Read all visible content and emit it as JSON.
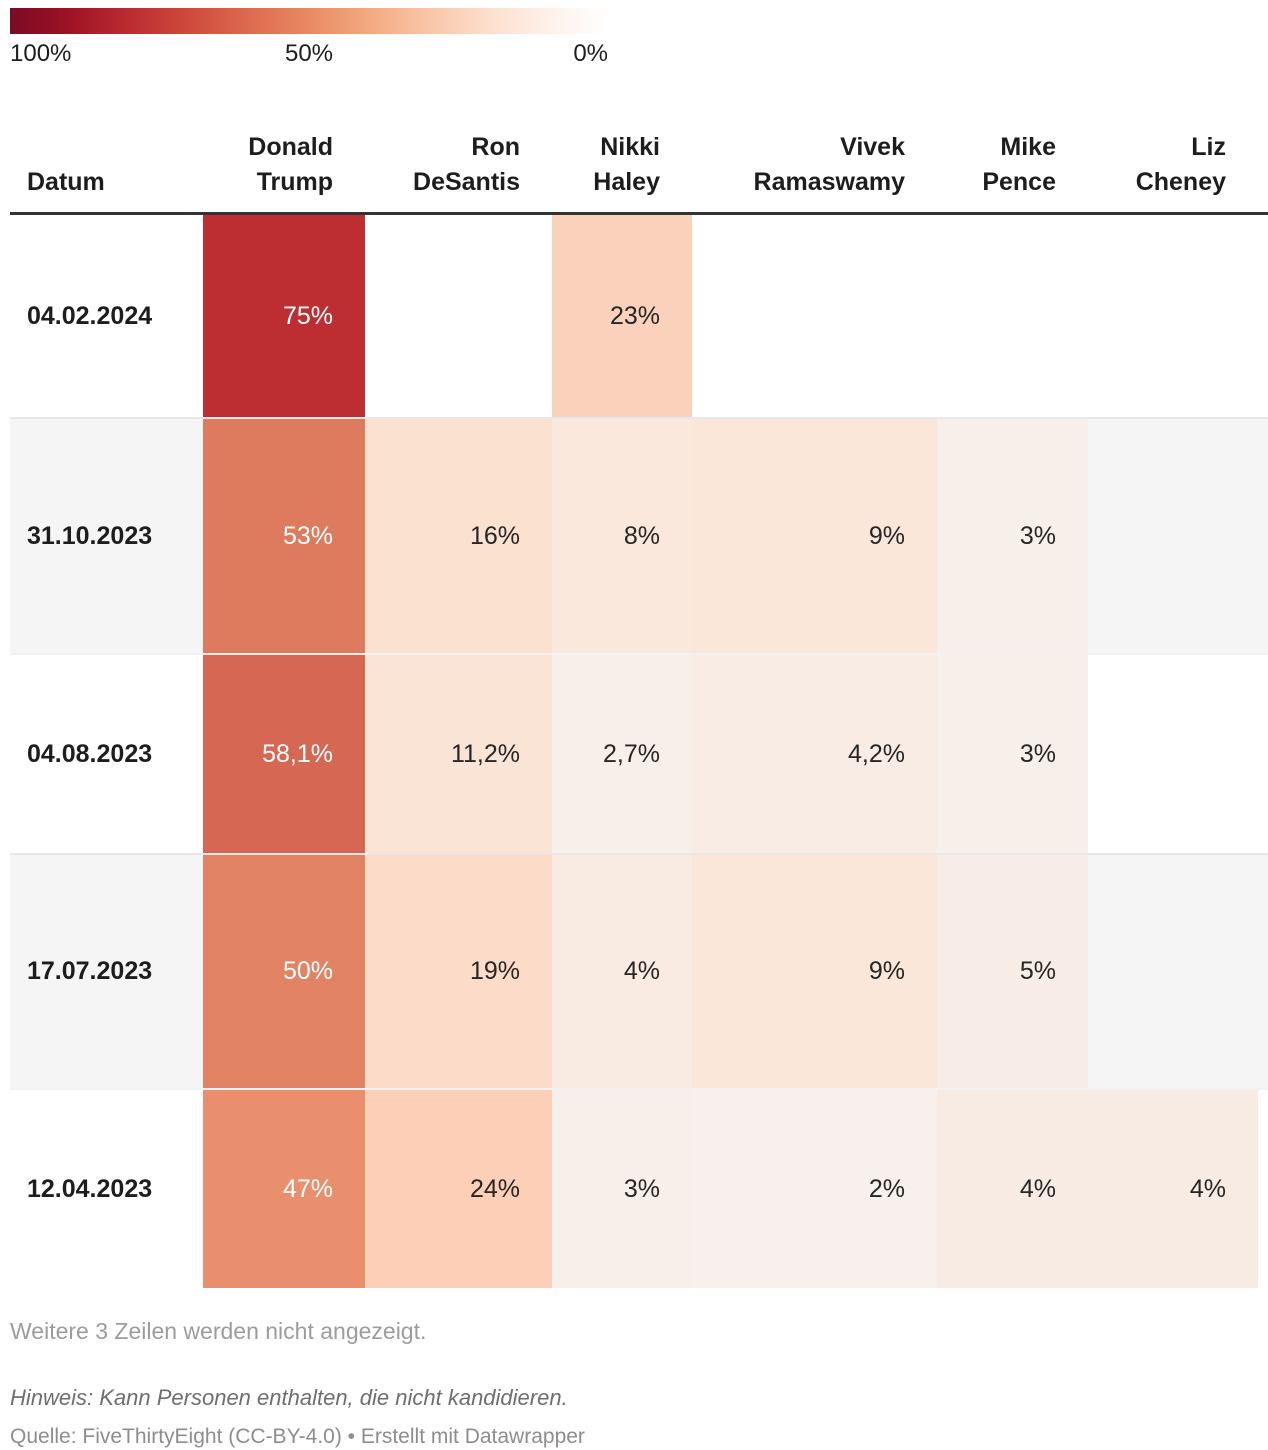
{
  "legend": {
    "max_label": "100%",
    "mid_label": "50%",
    "min_label": "0%",
    "gradient": [
      "#7a0b24",
      "#9e1224",
      "#bc2c31",
      "#cf4a3c",
      "#dd6a4f",
      "#e98a63",
      "#f3a981",
      "#f9c6a7",
      "#fcdecd",
      "#fef1e9",
      "#ffffff"
    ]
  },
  "table": {
    "columns": [
      {
        "key": "datum",
        "lines": [
          "Datum"
        ]
      },
      {
        "key": "trump",
        "lines": [
          "Donald",
          "Trump"
        ]
      },
      {
        "key": "desantis",
        "lines": [
          "Ron",
          "DeSantis"
        ]
      },
      {
        "key": "haley",
        "lines": [
          "Nikki",
          "Haley"
        ]
      },
      {
        "key": "ramaswamy",
        "lines": [
          "Vivek",
          "Ramaswamy"
        ]
      },
      {
        "key": "pence",
        "lines": [
          "Mike",
          "Pence"
        ]
      },
      {
        "key": "cheney",
        "lines": [
          "Liz",
          "Cheney"
        ]
      }
    ],
    "rows": [
      {
        "date": "04.02.2024",
        "cells": {
          "trump": {
            "text": "75%",
            "bg": "#bd2e32",
            "fg": "#ffffff"
          },
          "haley": {
            "text": "23%",
            "bg": "#fad2bc",
            "fg": "#262626"
          }
        }
      },
      {
        "date": "31.10.2023",
        "cells": {
          "trump": {
            "text": "53%",
            "bg": "#de7a5e",
            "fg": "#ffffff"
          },
          "desantis": {
            "text": "16%",
            "bg": "#fbe1d0",
            "fg": "#262626"
          },
          "haley": {
            "text": "8%",
            "bg": "#fae8dc",
            "fg": "#262626"
          },
          "ramaswamy": {
            "text": "9%",
            "bg": "#fbe7d9",
            "fg": "#262626"
          },
          "pence": {
            "text": "3%",
            "bg": "#f7efe9",
            "fg": "#262626"
          }
        }
      },
      {
        "date": "04.08.2023",
        "cells": {
          "trump": {
            "text": "58,1%",
            "bg": "#d66853",
            "fg": "#ffffff"
          },
          "desantis": {
            "text": "11,2%",
            "bg": "#fae4d6",
            "fg": "#262626"
          },
          "haley": {
            "text": "2,7%",
            "bg": "#f8efe9",
            "fg": "#262626"
          },
          "ramaswamy": {
            "text": "4,2%",
            "bg": "#f8ece5",
            "fg": "#262626"
          },
          "pence": {
            "text": "3%",
            "bg": "#f7efe9",
            "fg": "#262626"
          }
        }
      },
      {
        "date": "17.07.2023",
        "cells": {
          "trump": {
            "text": "50%",
            "bg": "#e28364",
            "fg": "#ffffff"
          },
          "desantis": {
            "text": "19%",
            "bg": "#fcdcc8",
            "fg": "#262626"
          },
          "haley": {
            "text": "4%",
            "bg": "#f9ebe2",
            "fg": "#262626"
          },
          "ramaswamy": {
            "text": "9%",
            "bg": "#fbe7d9",
            "fg": "#262626"
          },
          "pence": {
            "text": "5%",
            "bg": "#f8ede6",
            "fg": "#262626"
          }
        }
      },
      {
        "date": "12.04.2023",
        "cells": {
          "trump": {
            "text": "47%",
            "bg": "#ea8f6e",
            "fg": "#ffffff"
          },
          "desantis": {
            "text": "24%",
            "bg": "#fccfb6",
            "fg": "#262626"
          },
          "haley": {
            "text": "3%",
            "bg": "#f7efe9",
            "fg": "#262626"
          },
          "ramaswamy": {
            "text": "2%",
            "bg": "#f7f0ec",
            "fg": "#262626"
          },
          "pence": {
            "text": "4%",
            "bg": "#f8ebe3",
            "fg": "#262626"
          },
          "cheney": {
            "text": "4%",
            "bg": "#f8ebe3",
            "fg": "#262626"
          }
        }
      }
    ]
  },
  "footer": {
    "hidden_rows_note": "Weitere 3 Zeilen werden nicht angezeigt.",
    "hint": "Hinweis: Kann Personen enthalten, die nicht kandidieren.",
    "source": "Quelle: FiveThirtyEight (CC-BY-4.0) • Erstellt mit Datawrapper"
  },
  "chart_data": {
    "type": "heatmap",
    "title": "",
    "columns": [
      "Donald Trump",
      "Ron DeSantis",
      "Nikki Haley",
      "Vivek Ramaswamy",
      "Mike Pence",
      "Liz Cheney"
    ],
    "row_label": "Datum",
    "rows": [
      "04.02.2024",
      "31.10.2023",
      "04.08.2023",
      "17.07.2023",
      "12.04.2023"
    ],
    "values": [
      [
        75,
        null,
        23,
        null,
        null,
        null
      ],
      [
        53,
        16,
        8,
        9,
        3,
        null
      ],
      [
        58.1,
        11.2,
        2.7,
        4.2,
        3,
        null
      ],
      [
        50,
        19,
        4,
        9,
        5,
        null
      ],
      [
        47,
        24,
        3,
        2,
        4,
        4
      ]
    ],
    "unit": "%",
    "color_scale": {
      "min": 0,
      "max": 100,
      "min_color": "#ffffff",
      "max_color": "#7a0b24",
      "legend_position": "top-left"
    },
    "hidden_rows_count": 3
  }
}
